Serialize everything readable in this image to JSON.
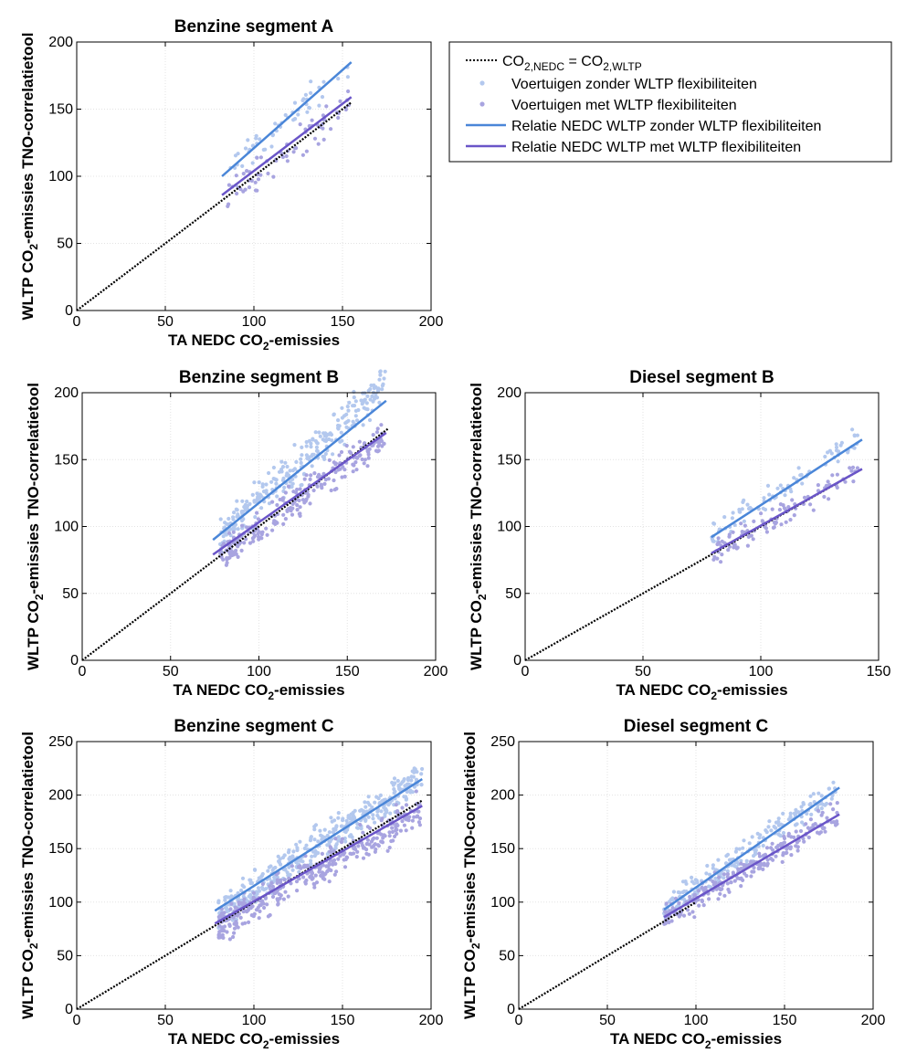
{
  "colors": {
    "flex_free_points": "#b3c8ee",
    "flex_points": "#a8a4e0",
    "fit_free": "#4a86d8",
    "fit_flex": "#6a55c8",
    "identity": "#000000",
    "grid": "#e3e3e3"
  },
  "legend": {
    "identity_label": {
      "base": "CO",
      "sub1": "2,NEDC",
      "mid": " = CO",
      "sub2": "2,WLTP"
    },
    "items": [
      "Voertuigen zonder WLTP flexibiliteiten",
      "Voertuigen met WLTP flexibiliteiten",
      "Relatie NEDC WLTP zonder WLTP flexibiliteiten",
      "Relatie NEDC WLTP met WLTP flexibiliteiten"
    ]
  },
  "chart_data": [
    {
      "type": "scatter",
      "title": "Benzine segment A",
      "xlabel": {
        "base": "TA NEDC CO",
        "sub": "2",
        "rest": "-emissies"
      },
      "ylabel": {
        "base": "WLTP CO",
        "sub": "2",
        "rest": "-emissies TNO-correlatietool"
      },
      "xlim": [
        0,
        200
      ],
      "ylim": [
        0,
        200
      ],
      "xticks": [
        0,
        50,
        100,
        150,
        200
      ],
      "yticks": [
        0,
        50,
        100,
        150,
        200
      ],
      "grid": true,
      "series": [
        {
          "role": "points_free",
          "x_range": [
            85,
            155
          ],
          "slope": 1.19,
          "intercept": 0,
          "n": 55,
          "spread": 6
        },
        {
          "role": "points_flex",
          "x_range": [
            85,
            155
          ],
          "slope": 1.0,
          "intercept": 0,
          "n": 70,
          "spread": 6
        },
        {
          "role": "fit_free",
          "x": [
            82,
            155
          ],
          "y": [
            100,
            185
          ]
        },
        {
          "role": "fit_flex",
          "x": [
            82,
            155
          ],
          "y": [
            86,
            159
          ]
        },
        {
          "role": "identity",
          "x": [
            0,
            155
          ],
          "y": [
            0,
            155
          ]
        }
      ]
    },
    {
      "type": "scatter",
      "title": "Benzine segment B",
      "xlabel": {
        "base": "TA NEDC CO",
        "sub": "2",
        "rest": "-emissies"
      },
      "ylabel": {
        "base": "WLTP CO",
        "sub": "2",
        "rest": "-emissies TNO-correlatietool"
      },
      "xlim": [
        0,
        200
      ],
      "ylim": [
        0,
        200
      ],
      "xticks": [
        0,
        50,
        100,
        150,
        200
      ],
      "yticks": [
        0,
        50,
        100,
        150,
        200
      ],
      "grid": true,
      "series": [
        {
          "role": "points_free",
          "x_range": [
            78,
            172
          ],
          "slope": 1.2,
          "intercept": 0,
          "n": 280,
          "spread": 7
        },
        {
          "role": "points_flex",
          "x_range": [
            78,
            172
          ],
          "slope": 0.98,
          "intercept": 0,
          "n": 240,
          "spread": 6
        },
        {
          "role": "fit_free",
          "x": [
            74,
            172
          ],
          "y": [
            90,
            194
          ]
        },
        {
          "role": "fit_flex",
          "x": [
            74,
            172
          ],
          "y": [
            79,
            170
          ]
        },
        {
          "role": "identity",
          "x": [
            0,
            173
          ],
          "y": [
            0,
            173
          ]
        }
      ]
    },
    {
      "type": "scatter",
      "title": "Diesel segment B",
      "xlabel": {
        "base": "TA NEDC CO",
        "sub": "2",
        "rest": "-emissies"
      },
      "ylabel": {
        "base": "WLTP CO",
        "sub": "2",
        "rest": "-emissies TNO-correlatietool"
      },
      "xlim": [
        0,
        150
      ],
      "ylim": [
        0,
        200
      ],
      "xticks": [
        0,
        50,
        100,
        150
      ],
      "yticks": [
        0,
        50,
        100,
        150,
        200
      ],
      "grid": true,
      "series": [
        {
          "role": "points_free",
          "x_range": [
            79,
            143
          ],
          "slope": 1.17,
          "intercept": 0,
          "n": 85,
          "spread": 5
        },
        {
          "role": "points_flex",
          "x_range": [
            79,
            143
          ],
          "slope": 1.0,
          "intercept": 0,
          "n": 95,
          "spread": 5
        },
        {
          "role": "fit_free",
          "x": [
            79,
            143
          ],
          "y": [
            92,
            165
          ]
        },
        {
          "role": "fit_flex",
          "x": [
            79,
            143
          ],
          "y": [
            80,
            143
          ]
        },
        {
          "role": "identity",
          "x": [
            0,
            143
          ],
          "y": [
            0,
            143
          ]
        }
      ]
    },
    {
      "type": "scatter",
      "title": "Benzine segment C",
      "xlabel": {
        "base": "TA NEDC CO",
        "sub": "2",
        "rest": "-emissies"
      },
      "ylabel": {
        "base": "WLTP CO",
        "sub": "2",
        "rest": "-emissies TNO-correlatietool"
      },
      "xlim": [
        0,
        200
      ],
      "ylim": [
        0,
        250
      ],
      "xticks": [
        0,
        50,
        100,
        150,
        200
      ],
      "yticks": [
        0,
        50,
        100,
        150,
        200,
        250
      ],
      "grid": true,
      "series": [
        {
          "role": "points_free",
          "x_range": [
            80,
            195
          ],
          "slope": 1.12,
          "intercept": 0,
          "n": 420,
          "spread": 8
        },
        {
          "role": "points_flex",
          "x_range": [
            80,
            195
          ],
          "slope": 0.96,
          "intercept": 0,
          "n": 380,
          "spread": 8
        },
        {
          "role": "fit_free",
          "x": [
            78,
            195
          ],
          "y": [
            92,
            215
          ]
        },
        {
          "role": "fit_flex",
          "x": [
            78,
            195
          ],
          "y": [
            80,
            190
          ]
        },
        {
          "role": "identity",
          "x": [
            0,
            195
          ],
          "y": [
            0,
            195
          ]
        }
      ]
    },
    {
      "type": "scatter",
      "title": "Diesel segment C",
      "xlabel": {
        "base": "TA NEDC CO",
        "sub": "2",
        "rest": "-emissies"
      },
      "ylabel": {
        "base": "WLTP CO",
        "sub": "2",
        "rest": "-emissies TNO-correlatietool"
      },
      "xlim": [
        0,
        200
      ],
      "ylim": [
        0,
        250
      ],
      "xticks": [
        0,
        50,
        100,
        150,
        200
      ],
      "yticks": [
        0,
        50,
        100,
        150,
        200,
        250
      ],
      "grid": true,
      "series": [
        {
          "role": "points_free",
          "x_range": [
            82,
            180
          ],
          "slope": 1.15,
          "intercept": 0,
          "n": 210,
          "spread": 6
        },
        {
          "role": "points_flex",
          "x_range": [
            82,
            180
          ],
          "slope": 1.01,
          "intercept": 0,
          "n": 230,
          "spread": 6
        },
        {
          "role": "fit_free",
          "x": [
            82,
            181
          ],
          "y": [
            93,
            207
          ]
        },
        {
          "role": "fit_flex",
          "x": [
            82,
            181
          ],
          "y": [
            86,
            182
          ]
        },
        {
          "role": "identity",
          "x": [
            0,
            100
          ],
          "y": [
            0,
            100
          ]
        }
      ]
    }
  ]
}
